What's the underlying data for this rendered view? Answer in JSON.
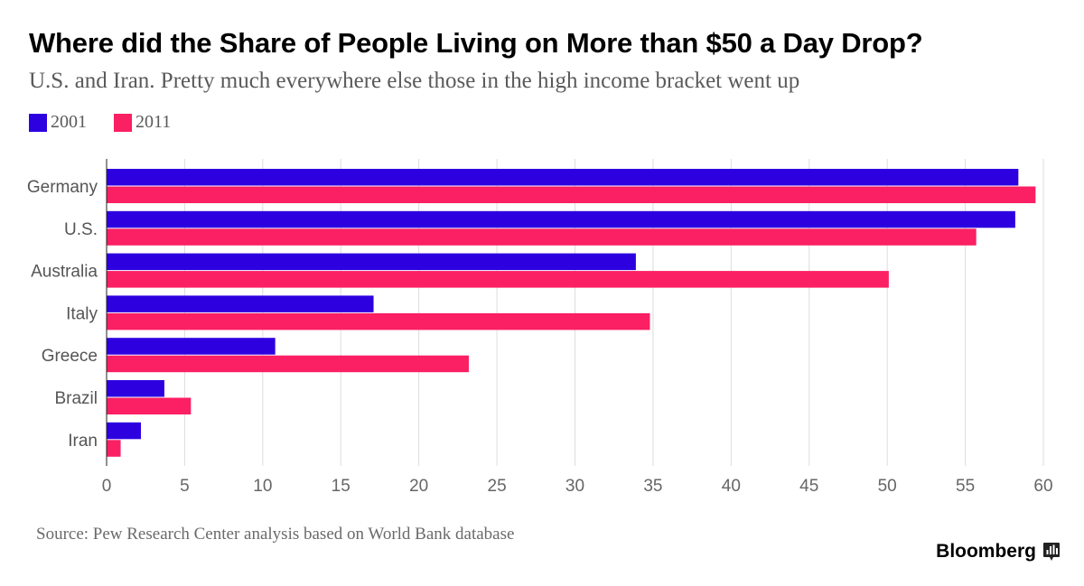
{
  "header": {
    "title": "Where did the Share of People Living on More than $50 a Day Drop?",
    "subtitle": "U.S. and Iran. Pretty much everywhere else those in the high income bracket went up"
  },
  "footer": {
    "source": "Source: Pew Research Center analysis based on World Bank database",
    "brand": "Bloomberg",
    "brand_icon": "bloomberg-terminal-icon"
  },
  "colors": {
    "2001": "#2d00e0",
    "2011": "#fb1f63",
    "grid": "#dddddd",
    "axis": "#222222"
  },
  "chart_data": {
    "type": "bar",
    "orientation": "horizontal",
    "title": "Where did the Share of People Living on More than $50 a Day Drop?",
    "subtitle": "U.S. and Iran. Pretty much everywhere else those in the high income bracket went up",
    "categories": [
      "Germany",
      "U.S.",
      "Australia",
      "Italy",
      "Greece",
      "Brazil",
      "Iran"
    ],
    "series": [
      {
        "name": "2001",
        "values": [
          58.4,
          58.2,
          33.9,
          17.1,
          10.8,
          3.7,
          2.2
        ]
      },
      {
        "name": "2011",
        "values": [
          59.5,
          55.7,
          50.1,
          34.8,
          23.2,
          5.4,
          0.9
        ]
      }
    ],
    "xlabel": "",
    "ylabel": "",
    "xlim": [
      0,
      60
    ],
    "xticks": [
      "0",
      "5",
      "10",
      "15",
      "20",
      "25",
      "30",
      "35",
      "40",
      "45",
      "50",
      "55",
      "60"
    ],
    "grid": true,
    "legend": "top-left"
  }
}
